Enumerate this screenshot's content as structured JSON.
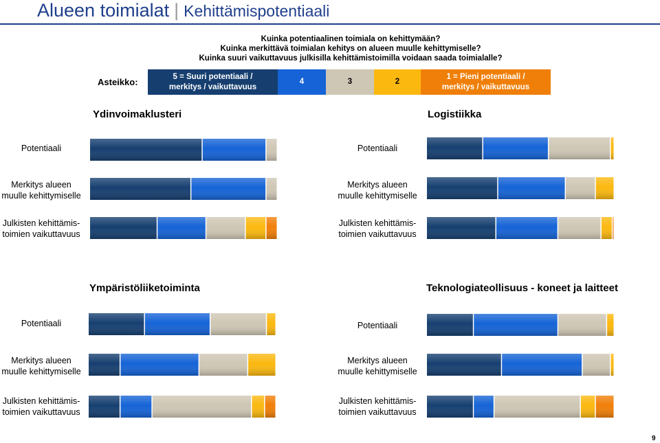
{
  "header": {
    "title": "Alueen toimialat",
    "subtitle": "Kehittämispotentiaali"
  },
  "questions": [
    "Kuinka potentiaalinen toimiala on kehittymään?",
    "Kuinka merkittävä toimialan kehitys on alueen muulle kehittymiselle?",
    "Kuinka suuri vaikuttavuus julkisilla kehittämistoimilla voidaan saada toimialalle?"
  ],
  "scale": {
    "label": "Asteikko:",
    "items": [
      {
        "line1": "5 = Suuri potentiaali /",
        "line2": "merkitys / vaikuttavuus",
        "color": "#163f70",
        "text_color": "#ffffff"
      },
      {
        "line1": "4",
        "line2": "",
        "color": "#1563d6",
        "text_color": "#ffffff"
      },
      {
        "line1": "3",
        "line2": "",
        "color": "#cfc7b5",
        "text_color": "#000000"
      },
      {
        "line1": "2",
        "line2": "",
        "color": "#fbb80f",
        "text_color": "#000000"
      },
      {
        "line1": "1 = Pieni potentiaali /",
        "line2": "merkitys / vaikuttavuus",
        "color": "#f07f09",
        "text_color": "#ffffff"
      }
    ]
  },
  "row_labels": [
    {
      "line1": "Potentiaali",
      "line2": ""
    },
    {
      "line1": "Merkitys alueen",
      "line2": "muulle kehittymiselle"
    },
    {
      "line1": "Julkisten kehittämis-",
      "line2": "toimien vaikuttavuus"
    }
  ],
  "chart_data": {
    "type": "bar",
    "stacked": true,
    "orientation": "horizontal",
    "unit": "share of responses (%)",
    "categories": [
      "5",
      "4",
      "3",
      "2",
      "1"
    ],
    "panels": [
      {
        "title": "Ydinvoimaklusteri",
        "bars": [
          {
            "label": "Potentiaali",
            "values": [
              60,
              34,
              6,
              0,
              0
            ]
          },
          {
            "label": "Merkitys alueen muulle kehittymiselle",
            "values": [
              54,
              40,
              6,
              0,
              0
            ]
          },
          {
            "label": "Julkisten kehittämistoimien vaikuttavuus",
            "values": [
              36,
              26,
              21,
              11,
              6
            ]
          }
        ]
      },
      {
        "title": "Logistiikka",
        "bars": [
          {
            "label": "Potentiaali",
            "values": [
              30,
              35,
              33,
              2,
              0
            ]
          },
          {
            "label": "Merkitys alueen muulle kehittymiselle",
            "values": [
              38,
              36,
              16,
              10,
              0
            ]
          },
          {
            "label": "Julkisten kehittämistoimien vaikuttavuus",
            "values": [
              37,
              33,
              23,
              6,
              1
            ]
          }
        ]
      },
      {
        "title": "Ympäristöliiketoiminta",
        "bars": [
          {
            "label": "Potentiaali",
            "values": [
              30,
              35,
              30,
              5,
              0
            ]
          },
          {
            "label": "Merkitys alueen muulle kehittymiselle",
            "values": [
              17,
              42,
              26,
              15,
              0
            ]
          },
          {
            "label": "Julkisten kehittämistoimien vaikuttavuus",
            "values": [
              17,
              17,
              53,
              7,
              6
            ]
          }
        ]
      },
      {
        "title": "Teknologiateollisuus - koneet ja laitteet",
        "bars": [
          {
            "label": "Potentiaali",
            "values": [
              25,
              45,
              26,
              4,
              0
            ]
          },
          {
            "label": "Merkitys alueen muulle kehittymiselle",
            "values": [
              40,
              43,
              15,
              2,
              0
            ]
          },
          {
            "label": "Julkisten kehittämistoimien vaikuttavuus",
            "values": [
              25,
              11,
              46,
              8,
              10
            ]
          }
        ]
      }
    ]
  },
  "page_number": "9"
}
